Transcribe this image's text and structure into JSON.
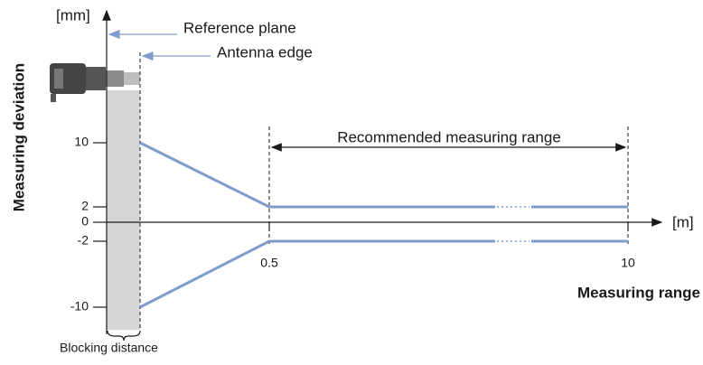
{
  "y_axis": {
    "unit": "[mm]",
    "title": "Measuring deviation",
    "ticks": [
      "10",
      "2",
      "0",
      "-2",
      "-10"
    ]
  },
  "x_axis": {
    "unit": "[m]",
    "title": "Measuring range",
    "ticks": [
      "0.5",
      "10"
    ]
  },
  "annotations": {
    "reference_plane": "Reference plane",
    "antenna_edge": "Antenna edge",
    "recommended_range": "Recommended measuring range",
    "blocking_distance": "Blocking distance"
  }
}
